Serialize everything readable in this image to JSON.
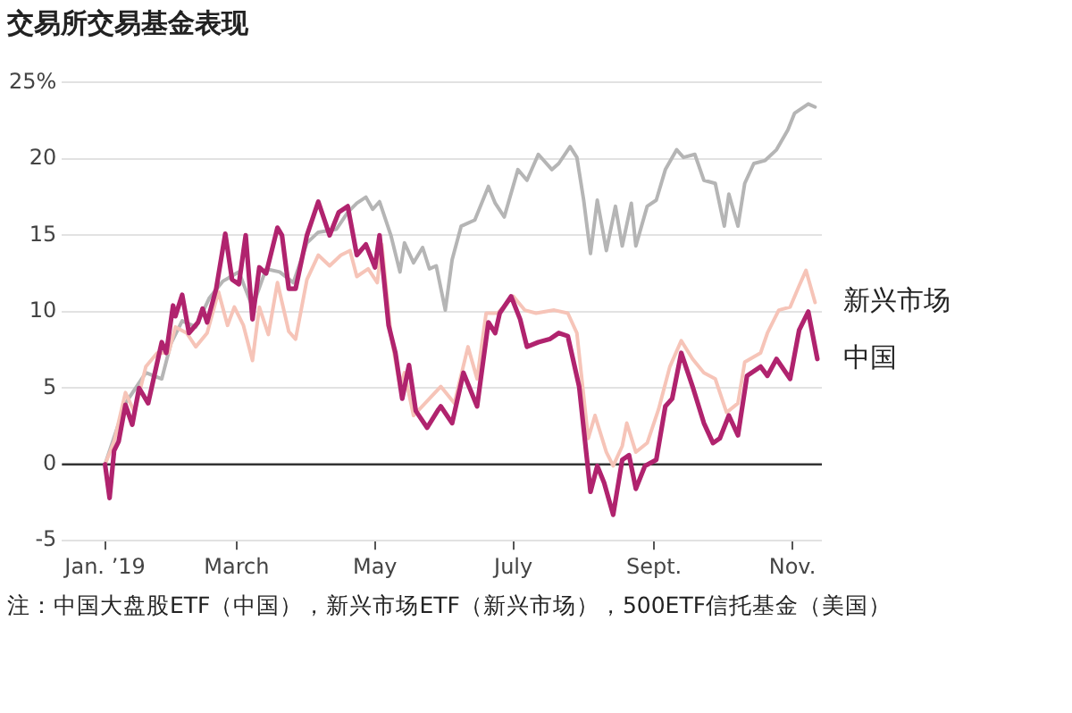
{
  "chart_data": {
    "type": "line",
    "title": "交易所交易基金表现",
    "annotations": [
      "注：中国大盘股ETF（中国），新兴市场ETF（新兴市场），500ETF信托基金（美国）"
    ],
    "ylim": [
      -5,
      25
    ],
    "yticks": [
      -5,
      0,
      5,
      10,
      15,
      20,
      {
        "value": 25,
        "label": "25%"
      }
    ],
    "xlim": [
      "2018-12-14",
      "2019-11-14"
    ],
    "xticks": [
      {
        "value": "2019-01-02",
        "label": "Jan. ’19"
      },
      {
        "value": "2019-03-01",
        "label": "March"
      },
      {
        "value": "2019-05-01",
        "label": "May"
      },
      {
        "value": "2019-07-01",
        "label": "July"
      },
      {
        "value": "2019-09-01",
        "label": "Sept."
      },
      {
        "value": "2019-11-01",
        "label": "Nov."
      }
    ],
    "grid": "y",
    "marker": "none",
    "line_style": "solid",
    "ref_lines": [
      {
        "axis": "y",
        "value": 0,
        "color": "#333333"
      }
    ],
    "series": [
      {
        "color": "#b5b5b5",
        "x": [
          "2019-01-02",
          "2019-01-11",
          "2019-01-20",
          "2019-01-27",
          "2019-01-31",
          "2019-02-05",
          "2019-02-11",
          "2019-02-17",
          "2019-02-23",
          "2019-03-02",
          "2019-03-08",
          "2019-03-14",
          "2019-03-20",
          "2019-03-26",
          "2019-04-01",
          "2019-04-06",
          "2019-04-14",
          "2019-04-19",
          "2019-04-23",
          "2019-04-27",
          "2019-04-30",
          "2019-05-03",
          "2019-05-08",
          "2019-05-12",
          "2019-05-14",
          "2019-05-18",
          "2019-05-22",
          "2019-05-25",
          "2019-05-28",
          "2019-06-01",
          "2019-06-04",
          "2019-06-08",
          "2019-06-14",
          "2019-06-20",
          "2019-06-23",
          "2019-06-27",
          "2019-07-03",
          "2019-07-07",
          "2019-07-12",
          "2019-07-18",
          "2019-07-21",
          "2019-07-26",
          "2019-07-29",
          "2019-08-01",
          "2019-08-04",
          "2019-08-07",
          "2019-08-11",
          "2019-08-15",
          "2019-08-18",
          "2019-08-22",
          "2019-08-24",
          "2019-08-29",
          "2019-09-02",
          "2019-09-06",
          "2019-09-11",
          "2019-09-14",
          "2019-09-19",
          "2019-09-23",
          "2019-09-28",
          "2019-10-02",
          "2019-10-04",
          "2019-10-08",
          "2019-10-11",
          "2019-10-15",
          "2019-10-20",
          "2019-10-25",
          "2019-10-30",
          "2019-11-02",
          "2019-11-08",
          "2019-11-11"
        ],
        "values": [
          0,
          4,
          6,
          5.6,
          7.9,
          9.4,
          9,
          10.9,
          12,
          12.6,
          10.3,
          12.8,
          12.6,
          11.9,
          14.5,
          15.2,
          15.4,
          16.5,
          17.1,
          17.5,
          16.7,
          17.2,
          15,
          12.6,
          14.5,
          13.2,
          14.2,
          12.8,
          13,
          10.1,
          13.4,
          15.6,
          16,
          18.2,
          17.1,
          16.2,
          19.3,
          18.6,
          20.3,
          19.3,
          19.7,
          20.8,
          20.1,
          17.3,
          13.8,
          17.3,
          14,
          16.9,
          14.3,
          17.1,
          14.3,
          16.9,
          17.3,
          19.3,
          20.6,
          20.1,
          20.3,
          18.6,
          18.4,
          15.6,
          17.7,
          15.6,
          18.4,
          19.7,
          19.9,
          20.6,
          21.9,
          23,
          23.6,
          23.4
        ]
      },
      {
        "name": "新兴市场",
        "color": "#f6c4b8",
        "x": [
          "2019-01-02",
          "2019-01-06",
          "2019-01-11",
          "2019-01-15",
          "2019-01-20",
          "2019-01-25",
          "2019-01-30",
          "2019-02-02",
          "2019-02-07",
          "2019-02-11",
          "2019-02-16",
          "2019-02-21",
          "2019-02-25",
          "2019-02-28",
          "2019-03-04",
          "2019-03-08",
          "2019-03-11",
          "2019-03-15",
          "2019-03-19",
          "2019-03-24",
          "2019-03-27",
          "2019-04-01",
          "2019-04-06",
          "2019-04-11",
          "2019-04-16",
          "2019-04-20",
          "2019-04-23",
          "2019-04-28",
          "2019-05-02",
          "2019-05-04",
          "2019-05-08",
          "2019-05-12",
          "2019-05-14",
          "2019-05-18",
          "2019-05-25",
          "2019-05-30",
          "2019-06-05",
          "2019-06-11",
          "2019-06-15",
          "2019-06-19",
          "2019-06-24",
          "2019-07-01",
          "2019-07-06",
          "2019-07-11",
          "2019-07-19",
          "2019-07-25",
          "2019-07-29",
          "2019-08-03",
          "2019-08-06",
          "2019-08-11",
          "2019-08-14",
          "2019-08-18",
          "2019-08-20",
          "2019-08-24",
          "2019-08-29",
          "2019-09-03",
          "2019-09-08",
          "2019-09-13",
          "2019-09-18",
          "2019-09-23",
          "2019-09-28",
          "2019-10-03",
          "2019-10-08",
          "2019-10-11",
          "2019-10-18",
          "2019-10-21",
          "2019-10-26",
          "2019-10-31",
          "2019-11-04",
          "2019-11-07",
          "2019-11-11"
        ],
        "values": [
          0,
          1.5,
          4.7,
          3.4,
          6.4,
          7.3,
          7.3,
          9,
          8.6,
          7.7,
          8.6,
          11.3,
          9.1,
          10.3,
          9.1,
          6.8,
          10.3,
          8.5,
          11.9,
          8.7,
          8.2,
          12.1,
          13.7,
          13,
          13.7,
          14,
          12.3,
          12.8,
          11.9,
          14.4,
          8.5,
          5.1,
          6,
          3.2,
          4.3,
          5.1,
          4,
          7.7,
          5.6,
          9.9,
          9.9,
          11,
          10.1,
          9.9,
          10.1,
          9.9,
          8.6,
          1.7,
          3.2,
          0.8,
          -0.1,
          1.2,
          2.7,
          0.8,
          1.4,
          3.6,
          6.4,
          8.1,
          6.9,
          6,
          5.6,
          3.4,
          4,
          6.7,
          7.3,
          8.6,
          10.1,
          10.3,
          11.7,
          12.7,
          10.6
        ]
      },
      {
        "name": "中国",
        "color": "#b0236e",
        "x": [
          "2019-01-02",
          "2019-01-04",
          "2019-01-06",
          "2019-01-08",
          "2019-01-11",
          "2019-01-14",
          "2019-01-17",
          "2019-01-21",
          "2019-01-24",
          "2019-01-27",
          "2019-01-29",
          "2019-02-01",
          "2019-02-02",
          "2019-02-05",
          "2019-02-08",
          "2019-02-12",
          "2019-02-14",
          "2019-02-16",
          "2019-02-20",
          "2019-02-24",
          "2019-02-27",
          "2019-03-02",
          "2019-03-05",
          "2019-03-08",
          "2019-03-11",
          "2019-03-14",
          "2019-03-19",
          "2019-03-21",
          "2019-03-24",
          "2019-03-27",
          "2019-04-01",
          "2019-04-06",
          "2019-04-11",
          "2019-04-15",
          "2019-04-19",
          "2019-04-23",
          "2019-04-27",
          "2019-05-01",
          "2019-05-03",
          "2019-05-07",
          "2019-05-10",
          "2019-05-13",
          "2019-05-16",
          "2019-05-19",
          "2019-05-24",
          "2019-05-29",
          "2019-05-30",
          "2019-06-04",
          "2019-06-09",
          "2019-06-15",
          "2019-06-20",
          "2019-06-23",
          "2019-06-25",
          "2019-06-30",
          "2019-07-04",
          "2019-07-07",
          "2019-07-12",
          "2019-07-17",
          "2019-07-21",
          "2019-07-25",
          "2019-07-30",
          "2019-08-04",
          "2019-08-07",
          "2019-08-10",
          "2019-08-14",
          "2019-08-18",
          "2019-08-21",
          "2019-08-24",
          "2019-08-28",
          "2019-09-02",
          "2019-09-06",
          "2019-09-09",
          "2019-09-13",
          "2019-09-18",
          "2019-09-23",
          "2019-09-27",
          "2019-09-30",
          "2019-10-04",
          "2019-10-08",
          "2019-10-12",
          "2019-10-18",
          "2019-10-21",
          "2019-10-25",
          "2019-10-31",
          "2019-11-04",
          "2019-11-08",
          "2019-11-12"
        ],
        "values": [
          0,
          -2.2,
          0.9,
          1.5,
          3.9,
          2.6,
          5,
          4,
          6,
          8,
          7.3,
          10.4,
          9.7,
          11.1,
          8.6,
          9.3,
          10.2,
          9.3,
          11.5,
          15.1,
          12.1,
          11.8,
          15,
          9.5,
          12.9,
          12.5,
          15.5,
          15,
          11.5,
          11.5,
          15,
          17.2,
          15,
          16.5,
          16.9,
          13.7,
          14.4,
          12.9,
          15,
          9.1,
          7.3,
          4.3,
          6.5,
          3.5,
          2.4,
          3.6,
          3.8,
          2.7,
          6,
          3.8,
          9.3,
          8.6,
          9.9,
          11,
          9.5,
          7.7,
          8,
          8.2,
          8.6,
          8.4,
          5.1,
          -1.8,
          -0.1,
          -1.2,
          -3.3,
          0.3,
          0.6,
          -1.6,
          -0.1,
          0.3,
          3.8,
          4.3,
          7.3,
          5.1,
          2.7,
          1.4,
          1.7,
          3.2,
          1.9,
          5.8,
          6.4,
          5.8,
          6.9,
          5.6,
          8.8,
          10,
          6.9
        ]
      }
    ]
  }
}
